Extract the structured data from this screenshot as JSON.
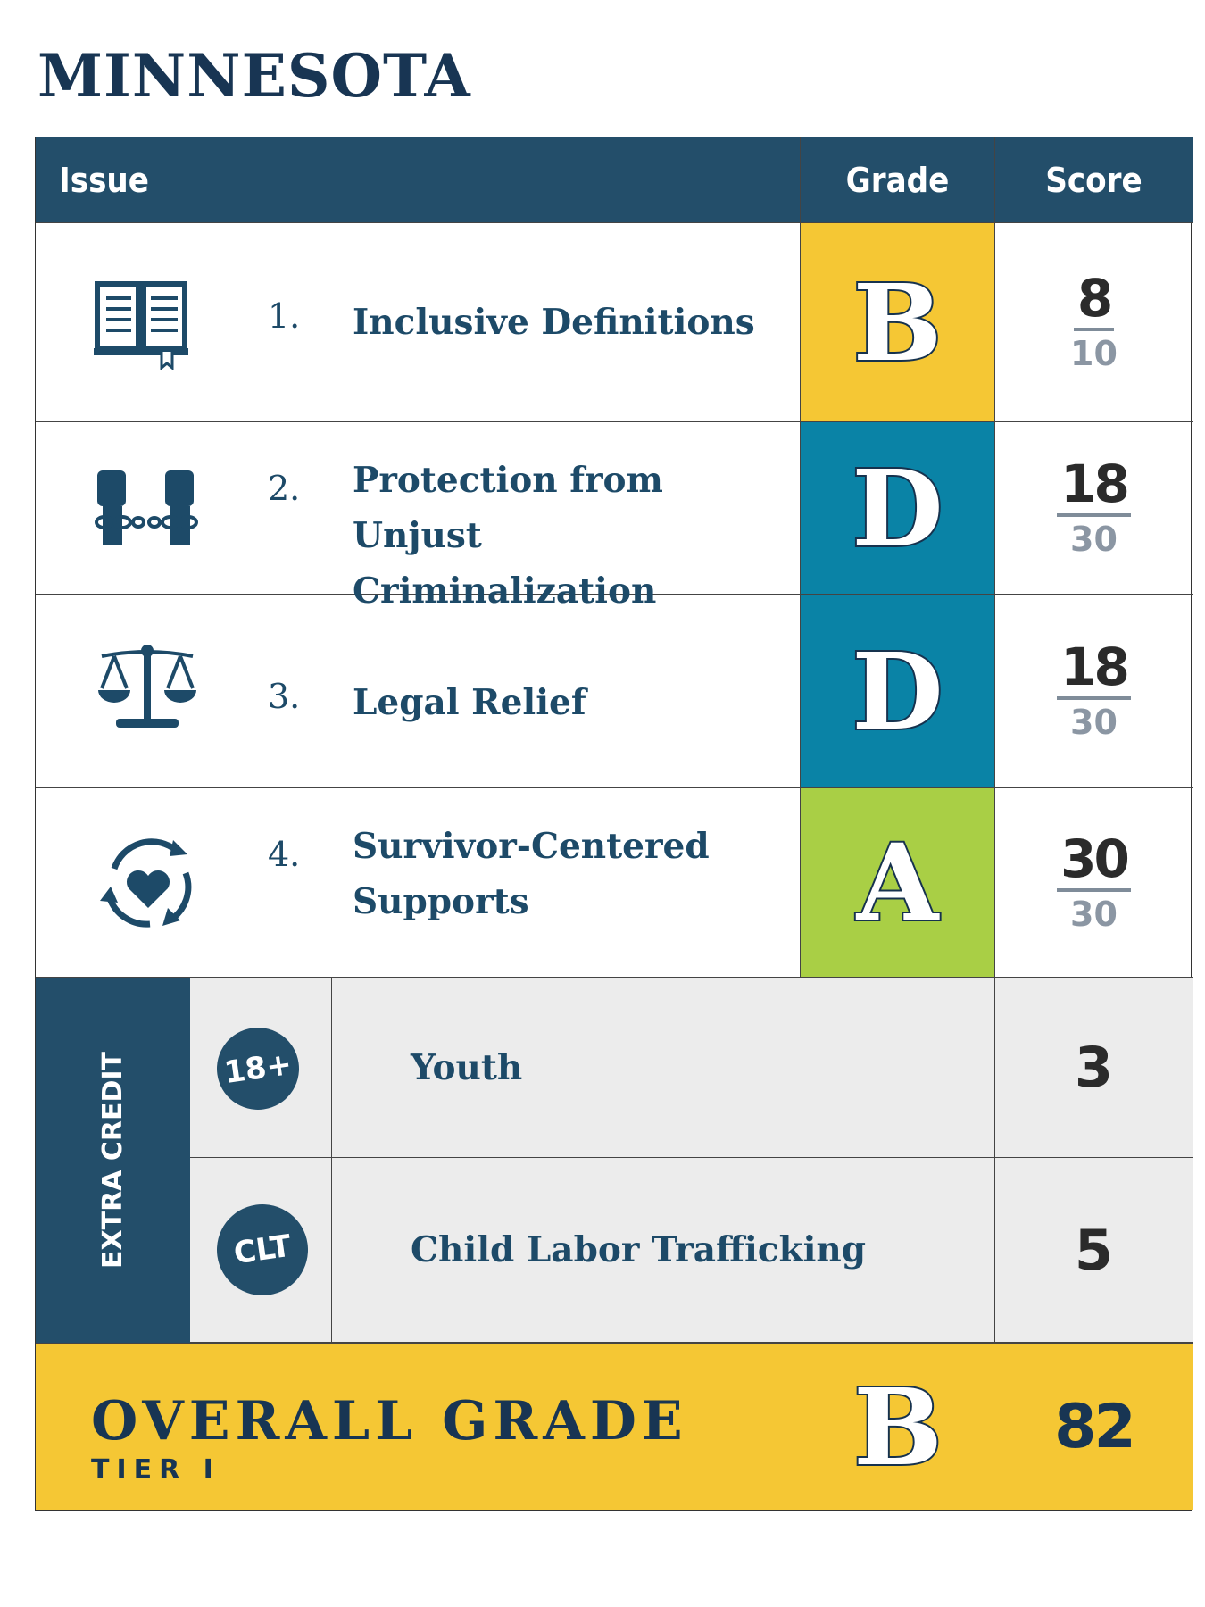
{
  "title": "MINNESOTA",
  "header": {
    "issue": "Issue",
    "grade": "Grade",
    "score": "Score"
  },
  "colors": {
    "header": "#234e6a",
    "yellow": "#f5c734",
    "teal": "#0a83a6",
    "green": "#a9cf45",
    "gray": "#ececec"
  },
  "issues": [
    {
      "number": "1.",
      "label": "Inclusive Definitions",
      "grade": "B",
      "score": "8",
      "max": "10",
      "icon": "open-book-icon",
      "grade_color": "#f5c734"
    },
    {
      "number": "2.",
      "label": "Protection from Unjust Criminalization",
      "grade": "D",
      "score": "18",
      "max": "30",
      "icon": "raised-fists-broken-chain-icon",
      "grade_color": "#0a83a6"
    },
    {
      "number": "3.",
      "label": "Legal Relief",
      "grade": "D",
      "score": "18",
      "max": "30",
      "icon": "scales-of-justice-icon",
      "grade_color": "#0a83a6"
    },
    {
      "number": "4.",
      "label": "Survivor-Centered Supports",
      "grade": "A",
      "score": "30",
      "max": "30",
      "icon": "heart-cycle-icon",
      "grade_color": "#a9cf45"
    }
  ],
  "extra_credit": {
    "label": "EXTRA CREDIT",
    "items": [
      {
        "badge": "18+",
        "label": "Youth",
        "score": "3"
      },
      {
        "badge": "CLT",
        "label": "Child Labor Trafficking",
        "score": "5"
      }
    ]
  },
  "overall": {
    "label": "OVERALL GRADE",
    "tier": "TIER I",
    "grade": "B",
    "score": "82"
  }
}
